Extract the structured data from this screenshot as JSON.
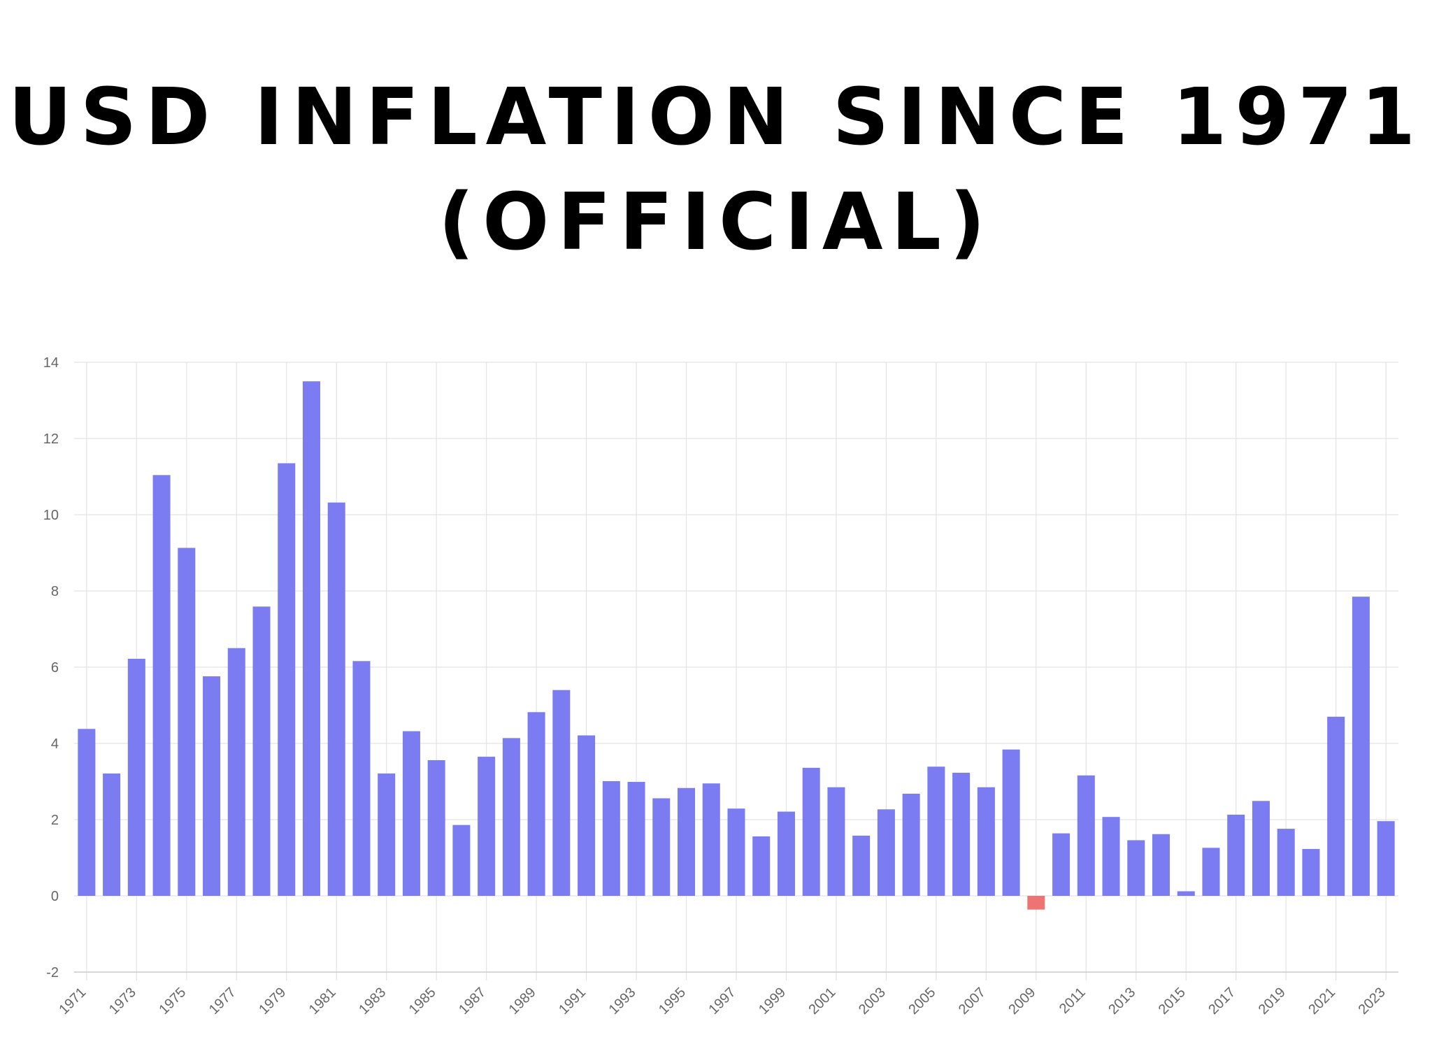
{
  "title": {
    "line1": "USD INFLATION SINCE 1971",
    "line2": "(OFFICIAL)"
  },
  "colors": {
    "positive": "#7b7bf2",
    "negative": "#ee7373",
    "grid": "#e3e3e3",
    "axis": "#cccccc",
    "tick_text": "#666666"
  },
  "chart_data": {
    "type": "bar",
    "title": "USD INFLATION SINCE 1971 (OFFICIAL)",
    "xlabel": "",
    "ylabel": "",
    "ylim": [
      -2,
      14
    ],
    "yticks": [
      -2,
      0,
      2,
      4,
      6,
      8,
      10,
      12,
      14
    ],
    "grid": true,
    "legend": "none",
    "categories": [
      "1971",
      "1972",
      "1973",
      "1974",
      "1975",
      "1976",
      "1977",
      "1978",
      "1979",
      "1980",
      "1981",
      "1982",
      "1983",
      "1984",
      "1985",
      "1986",
      "1987",
      "1988",
      "1989",
      "1990",
      "1991",
      "1992",
      "1993",
      "1994",
      "1995",
      "1996",
      "1997",
      "1998",
      "1999",
      "2000",
      "2001",
      "2002",
      "2003",
      "2004",
      "2005",
      "2006",
      "2007",
      "2008",
      "2009",
      "2010",
      "2011",
      "2012",
      "2013",
      "2014",
      "2015",
      "2016",
      "2017",
      "2018",
      "2019",
      "2020",
      "2021",
      "2022",
      "2023"
    ],
    "x_tick_labels": [
      "1971",
      "1973",
      "1975",
      "1977",
      "1979",
      "1981",
      "1983",
      "1985",
      "1987",
      "1989",
      "1991",
      "1993",
      "1995",
      "1997",
      "1999",
      "2001",
      "2003",
      "2005",
      "2007",
      "2009",
      "2011",
      "2013",
      "2015",
      "2017",
      "2019",
      "2021",
      "2023"
    ],
    "values": [
      4.38,
      3.21,
      6.22,
      11.04,
      9.13,
      5.76,
      6.5,
      7.59,
      11.35,
      13.5,
      10.32,
      6.16,
      3.21,
      4.32,
      3.56,
      1.86,
      3.65,
      4.14,
      4.82,
      5.4,
      4.21,
      3.01,
      2.99,
      2.56,
      2.83,
      2.95,
      2.29,
      1.56,
      2.21,
      3.36,
      2.85,
      1.58,
      2.27,
      2.68,
      3.39,
      3.23,
      2.85,
      3.84,
      -0.36,
      1.64,
      3.16,
      2.07,
      1.46,
      1.62,
      0.12,
      1.26,
      2.13,
      2.49,
      1.76,
      1.23,
      4.7,
      7.85,
      1.96
    ]
  }
}
